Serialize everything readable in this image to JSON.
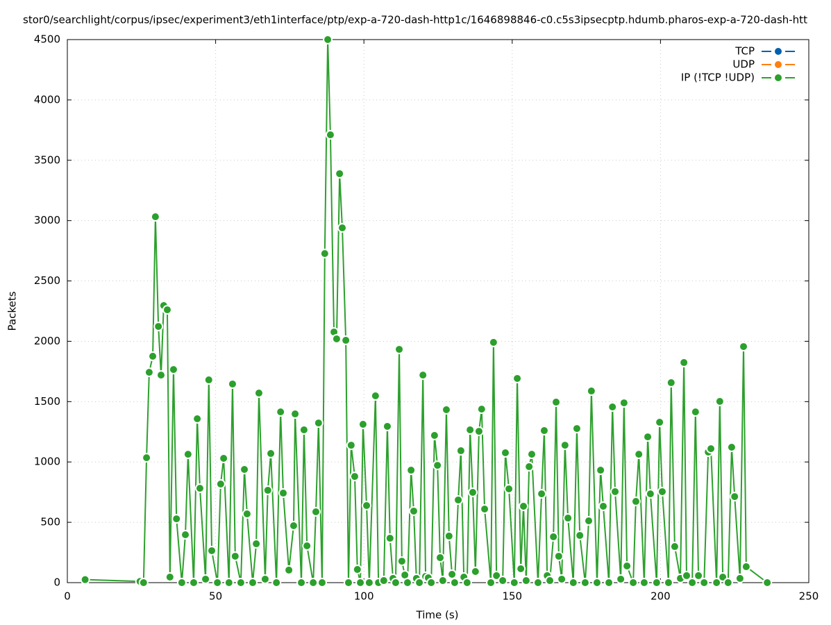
{
  "chart_data": {
    "type": "line",
    "title": "stor0/searchlight/corpus/ipsec/experiment3/eth1interface/ptp/exp-a-720-dash-http1c/1646898846-c0.c5s3ipsecptp.hdumb.pharos-exp-a-720-dash-htt",
    "xlabel": "Time (s)",
    "ylabel": "Packets",
    "xlim": [
      0,
      250
    ],
    "xticks": [
      0,
      50,
      100,
      150,
      200,
      250
    ],
    "ylim": [
      0,
      4500
    ],
    "yticks": [
      0,
      500,
      1000,
      1500,
      2000,
      2500,
      3000,
      3500,
      4000,
      4500
    ],
    "grid": true,
    "legend": "top-right",
    "series": [
      {
        "name": "TCP",
        "color": "#0060ad",
        "x": [],
        "values": []
      },
      {
        "name": "UDP",
        "color": "#ff7f0e",
        "x": [],
        "values": []
      },
      {
        "name": "IP (!TCP  !UDP)",
        "color": "#2ca02c",
        "x": [
          6,
          24.5,
          25.7,
          26.7,
          27.6,
          28.8,
          29.7,
          30.7,
          31.6,
          32.5,
          33.7,
          34.6,
          35.8,
          36.8,
          38.6,
          39.8,
          40.7,
          42.6,
          43.8,
          44.7,
          46.6,
          47.7,
          48.7,
          50.6,
          51.7,
          52.7,
          54.5,
          55.7,
          56.6,
          58.5,
          59.7,
          60.6,
          62.5,
          63.7,
          64.6,
          66.7,
          67.6,
          68.6,
          70.5,
          71.9,
          72.8,
          74.7,
          76.3,
          76.8,
          78.9,
          79.8,
          80.8,
          82.9,
          83.8,
          84.7,
          85.9,
          86.8,
          87.8,
          88.7,
          89.9,
          90.8,
          91.8,
          92.7,
          93.9,
          94.8,
          95.7,
          96.9,
          97.8,
          98.8,
          99.7,
          100.9,
          101.8,
          103.9,
          104.9,
          106.7,
          107.9,
          108.8,
          109.8,
          110.7,
          111.9,
          112.8,
          113.8,
          114.7,
          115.9,
          116.8,
          117.7,
          118.7,
          119.9,
          120.8,
          121.7,
          122.7,
          123.8,
          124.8,
          125.7,
          126.6,
          127.8,
          128.7,
          129.7,
          130.6,
          131.8,
          132.7,
          133.7,
          134.8,
          135.8,
          136.7,
          137.6,
          138.8,
          139.7,
          140.7,
          142.8,
          143.7,
          144.7,
          146.8,
          147.7,
          148.9,
          150.7,
          151.7,
          152.9,
          153.8,
          154.7,
          155.7,
          156.6,
          158.7,
          159.9,
          160.8,
          161.8,
          162.7,
          163.9,
          164.8,
          165.7,
          166.7,
          167.8,
          168.8,
          170.6,
          171.8,
          172.8,
          174.6,
          175.8,
          176.7,
          178.6,
          179.8,
          180.7,
          182.6,
          183.8,
          184.7,
          186.6,
          187.7,
          188.7,
          190.8,
          191.7,
          192.7,
          194.5,
          195.7,
          196.6,
          198.7,
          199.7,
          200.6,
          202.7,
          203.6,
          204.8,
          206.7,
          207.9,
          208.8,
          210.7,
          211.8,
          212.8,
          214.7,
          216.1,
          217.0,
          218.9,
          220.0,
          221.0,
          222.8,
          224.0,
          225.0,
          226.8,
          228.0,
          228.9,
          236.0
        ],
        "values": [
          25,
          10,
          0,
          1035,
          1743,
          1876,
          3032,
          2123,
          1720,
          2296,
          2261,
          46,
          1766,
          529,
          0,
          397,
          1064,
          0,
          1358,
          782,
          29,
          1680,
          265,
          0,
          817,
          1030,
          0,
          1646,
          219,
          0,
          938,
          570,
          0,
          322,
          1571,
          29,
          765,
          1070,
          0,
          1415,
          742,
          104,
          472,
          1398,
          0,
          1266,
          305,
          0,
          587,
          1323,
          0,
          2727,
          4500,
          3711,
          2077,
          2020,
          3389,
          2940,
          2008,
          0,
          1139,
          880,
          109,
          0,
          1312,
          639,
          0,
          1548,
          0,
          17,
          1295,
          368,
          35,
          0,
          1933,
          178,
          63,
          0,
          932,
          593,
          35,
          0,
          1720,
          52,
          40,
          0,
          1220,
          972,
          207,
          17,
          1433,
          386,
          69,
          0,
          685,
          1093,
          46,
          0,
          1266,
          748,
          92,
          1254,
          1438,
          610,
          0,
          1991,
          58,
          17,
          1076,
          777,
          0,
          1692,
          115,
          633,
          17,
          961,
          1064,
          0,
          736,
          1260,
          58,
          17,
          380,
          1496,
          219,
          29,
          1139,
          535,
          0,
          1277,
          391,
          0,
          512,
          1588,
          0,
          932,
          633,
          0,
          1456,
          754,
          29,
          1490,
          138,
          0,
          673,
          1064,
          0,
          1208,
          736,
          0,
          1329,
          754,
          0,
          1657,
          299,
          35,
          1824,
          58,
          0,
          1415,
          58,
          0,
          1082,
          1110,
          0,
          1502,
          46,
          0,
          1122,
          713,
          35,
          1956,
          132,
          0
        ]
      }
    ]
  }
}
